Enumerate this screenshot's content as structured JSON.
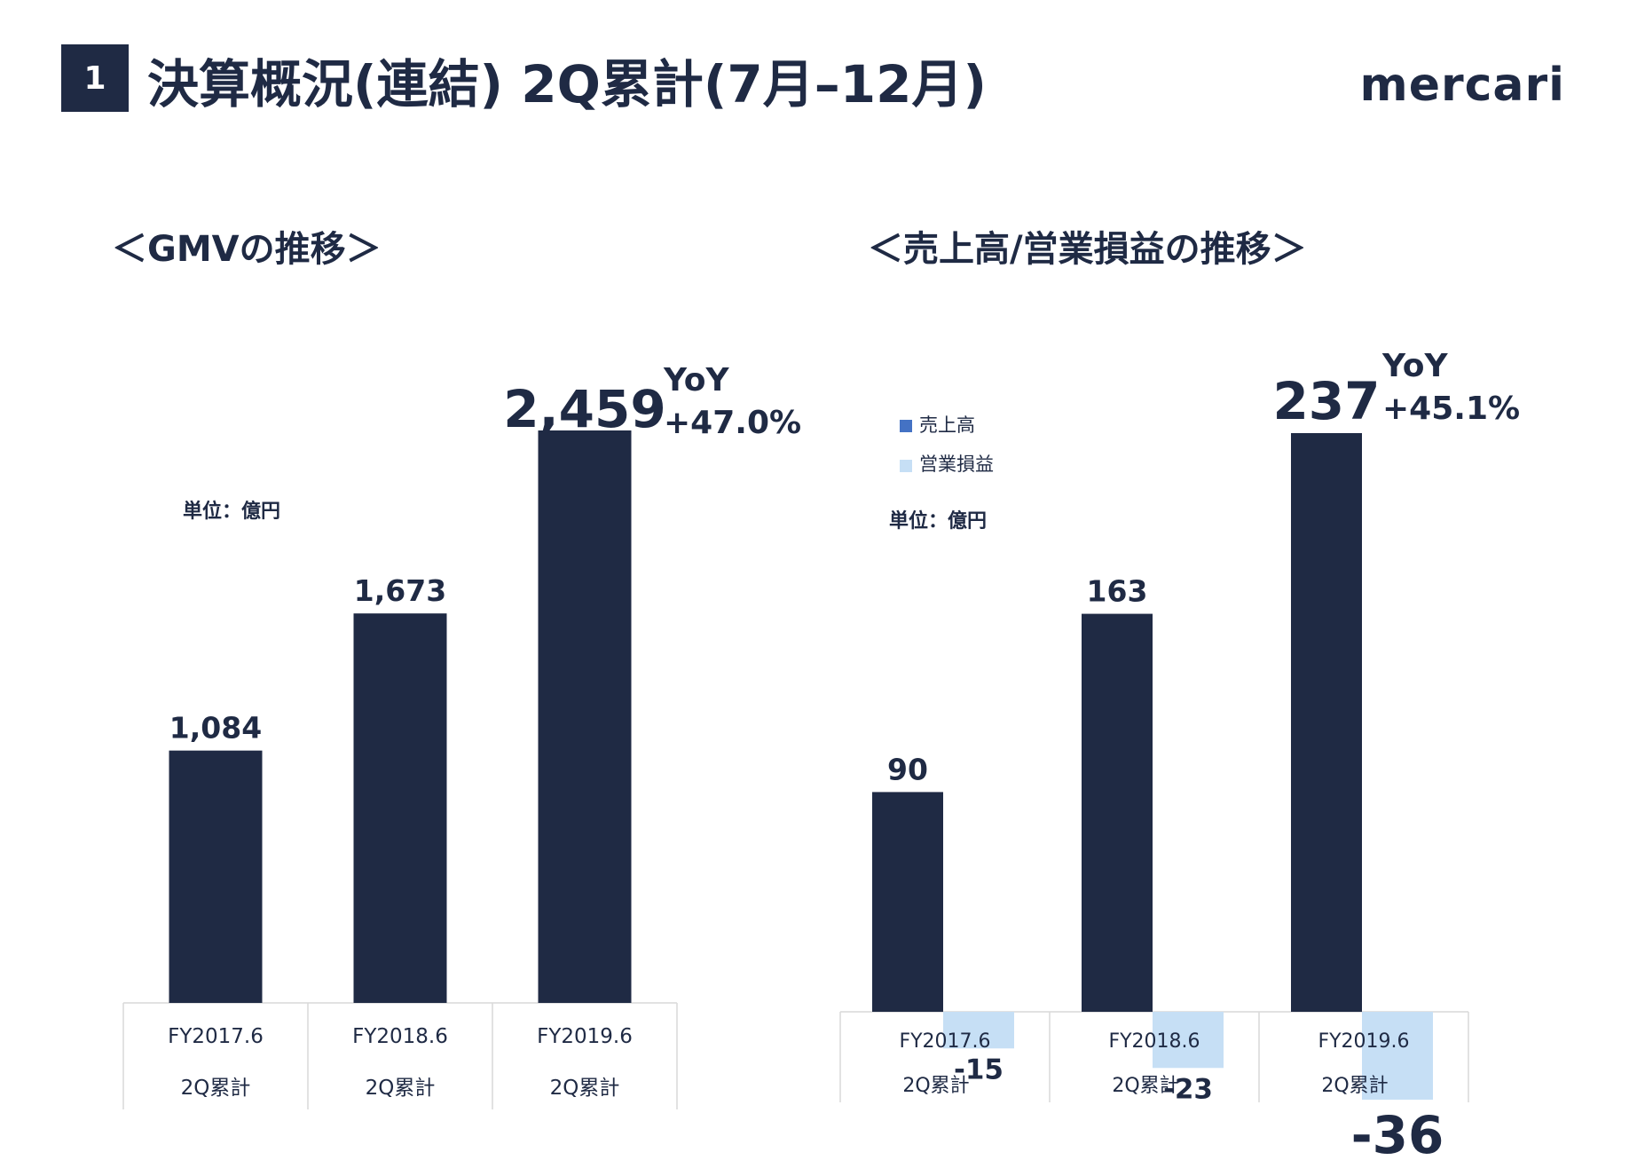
{
  "header": {
    "section_number": "1",
    "title": "決算概況(連結) 2Q累計(7月–12月)",
    "logo": "mercari"
  },
  "colors": {
    "navy": "#1f2a44",
    "light_blue": "#c6dff5",
    "legend_blue": "#4472c4",
    "axis_border": "#d9d9d9"
  },
  "chart_data": [
    {
      "type": "bar",
      "title": "＜GMVの推移＞",
      "unit_label": "単位：億円",
      "categories": [
        "FY2017.6",
        "FY2018.6",
        "FY2019.6"
      ],
      "category_sublabels": [
        "2Q累計",
        "2Q累計",
        "2Q累計"
      ],
      "series": [
        {
          "values": [
            1084,
            1673,
            2459
          ]
        }
      ],
      "value_labels": [
        "1,084",
        "1,673",
        "2,459"
      ],
      "ylim": [
        0,
        2459
      ],
      "yoy": {
        "label": "YoY",
        "value": "+47.0%"
      },
      "grid": false
    },
    {
      "type": "bar",
      "title": "＜売上高/営業損益の推移＞",
      "unit_label": "単位：億円",
      "categories": [
        "FY2017.6",
        "FY2018.6",
        "FY2019.6"
      ],
      "category_sublabels": [
        "2Q累計",
        "2Q累計",
        "2Q累計"
      ],
      "series": [
        {
          "name": "売上高",
          "values": [
            90,
            163,
            237
          ]
        },
        {
          "name": "営業損益",
          "values": [
            -15,
            -23,
            -36
          ]
        }
      ],
      "value_labels": [
        [
          "90",
          "163",
          "237"
        ],
        [
          "-15",
          "-23",
          "-36"
        ]
      ],
      "legend_position": "top-left",
      "ylim": [
        -36,
        237
      ],
      "yoy": {
        "label": "YoY",
        "value": "+45.1%"
      },
      "grid": false
    }
  ]
}
